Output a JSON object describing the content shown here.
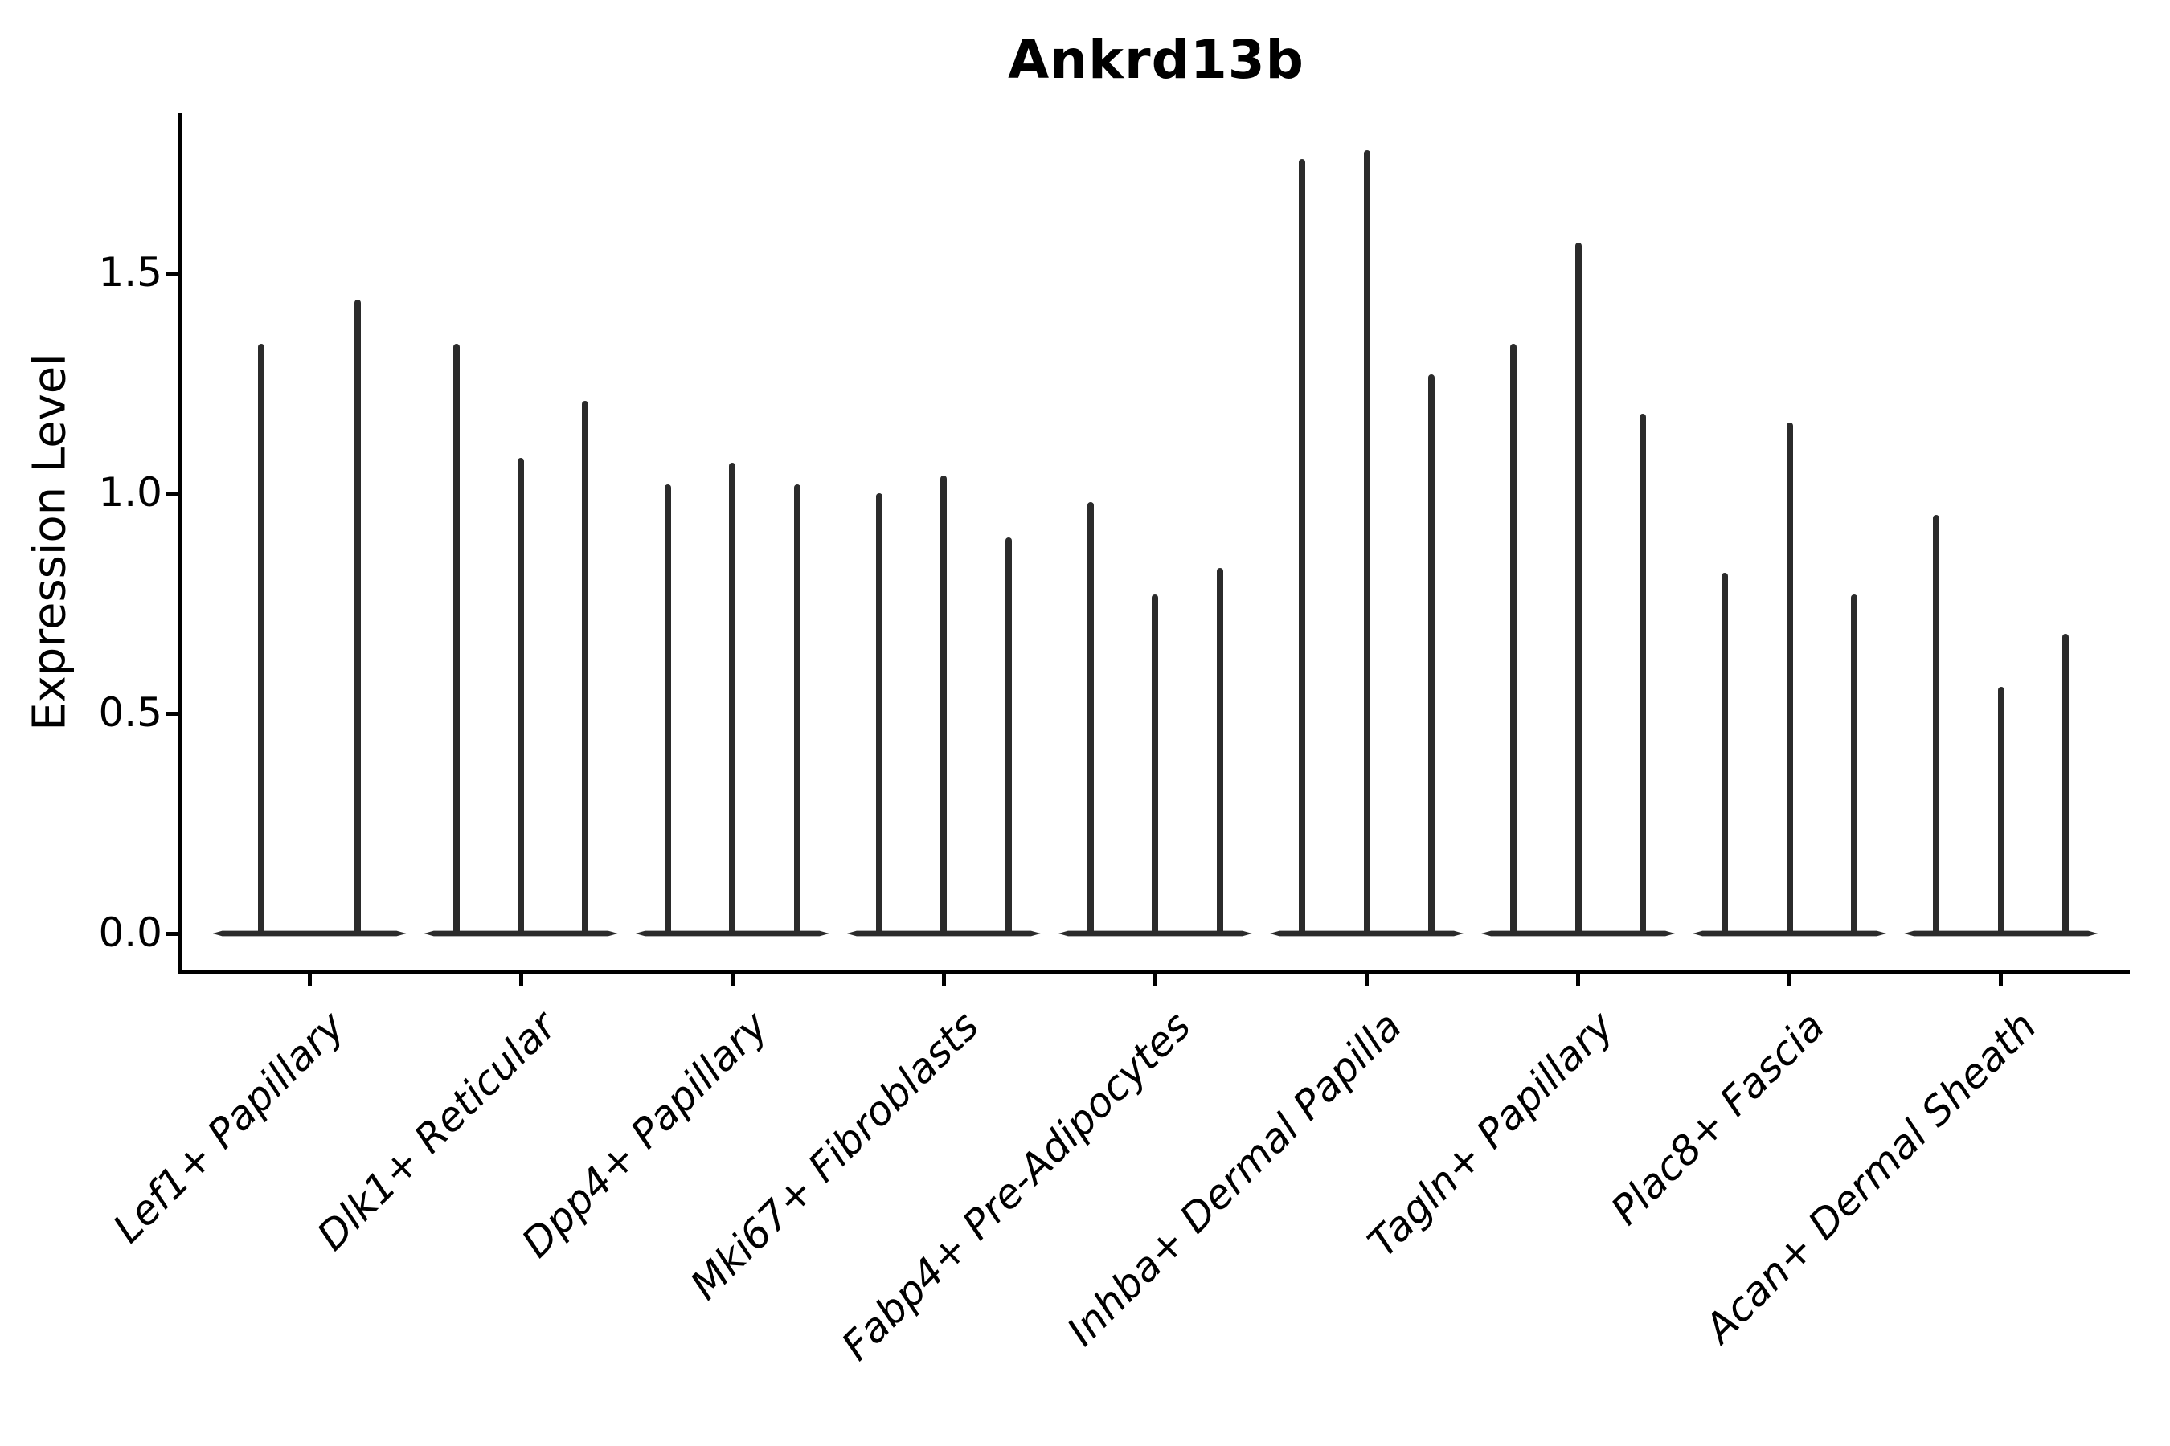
{
  "title": "Ankrd13b",
  "chart_data": {
    "type": "violin",
    "title": "Ankrd13b",
    "ylabel": "Expression Level",
    "xlabel": "",
    "ylim": [
      -0.09,
      1.87
    ],
    "ytick_labels": [
      "0.0",
      "0.5",
      "1.0",
      "1.5"
    ],
    "ytick_values": [
      0.0,
      0.5,
      1.0,
      1.5
    ],
    "grid": false,
    "legend_position": "none",
    "violin_color": "#2b2b2b",
    "axis_color": "#000000",
    "background_color": "#ffffff",
    "x_label_rotation_deg": 45,
    "categories": [
      "Lef1+ Papillary",
      "Dlk1+ Reticular",
      "Dpp4+ Papillary",
      "Mki67+ Fibroblasts",
      "Fabp4+ Pre-Adipocytes",
      "Inhba+ Dermal Papilla",
      "Tagln+ Papillary",
      "Plac8+ Fascia",
      "Acan+ Dermal Sheath"
    ],
    "groups": [
      {
        "label": "Lef1+ Papillary",
        "violin_peaks": [
          1.34,
          1.44
        ]
      },
      {
        "label": "Dlk1+ Reticular",
        "violin_peaks": [
          1.34,
          1.08,
          1.21
        ]
      },
      {
        "label": "Dpp4+ Papillary",
        "violin_peaks": [
          1.02,
          1.07,
          1.02
        ]
      },
      {
        "label": "Mki67+ Fibroblasts",
        "violin_peaks": [
          1.0,
          1.04,
          0.9
        ]
      },
      {
        "label": "Fabp4+ Pre-Adipocytes",
        "violin_peaks": [
          0.98,
          0.77,
          0.83
        ]
      },
      {
        "label": "Inhba+ Dermal Papilla",
        "violin_peaks": [
          1.76,
          1.78,
          1.27
        ]
      },
      {
        "label": "Tagln+ Papillary",
        "violin_peaks": [
          1.34,
          1.57,
          1.18
        ]
      },
      {
        "label": "Plac8+ Fascia",
        "violin_peaks": [
          0.82,
          1.16,
          0.77
        ]
      },
      {
        "label": "Acan+ Dermal Sheath",
        "violin_peaks": [
          0.95,
          0.56,
          0.68
        ]
      }
    ],
    "notes": "Violins are needle-thin: a flat dark base at expression 0 with a single thin spike rising to the peak value for each violin; group 1 has 2 violins, all others have 3."
  }
}
